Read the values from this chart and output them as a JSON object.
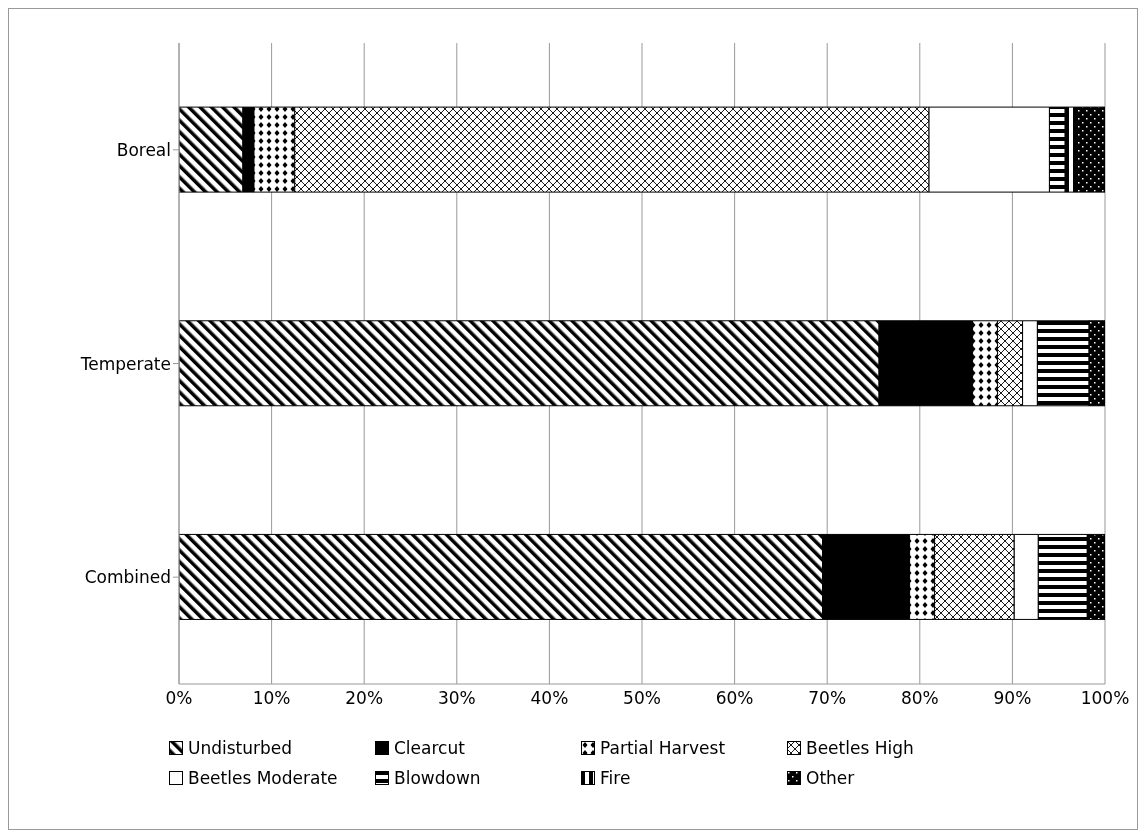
{
  "chart_data": {
    "type": "bar",
    "orientation": "horizontal",
    "stacked": true,
    "categories": [
      "Boreal",
      "Temperate",
      "Combined"
    ],
    "series": [
      {
        "name": "Undisturbed",
        "color": "#000000",
        "values": [
          6.9,
          75.6,
          69.5
        ]
      },
      {
        "name": "Clearcut",
        "color": "#000000",
        "values": [
          1.2,
          10.1,
          9.4
        ]
      },
      {
        "name": "Partial Harvest",
        "color": "#000000",
        "values": [
          4.4,
          2.7,
          2.7
        ]
      },
      {
        "name": "Beetles High",
        "color": "#000000",
        "values": [
          68.5,
          2.7,
          8.6
        ]
      },
      {
        "name": "Beetles Moderate",
        "color": "#ffffff",
        "values": [
          13.0,
          1.6,
          2.6
        ]
      },
      {
        "name": "Blowdown",
        "color": "#000000",
        "values": [
          1.7,
          5.6,
          5.3
        ]
      },
      {
        "name": "Fire",
        "color": "#000000",
        "values": [
          1.2,
          0,
          0
        ]
      },
      {
        "name": "Other",
        "color": "#000000",
        "values": [
          3.1,
          1.7,
          1.9
        ]
      }
    ],
    "xlim": [
      0,
      100
    ],
    "xticks": [
      {
        "value": 0,
        "label": "0%"
      },
      {
        "value": 10,
        "label": "10%"
      },
      {
        "value": 20,
        "label": "20%"
      },
      {
        "value": 30,
        "label": "30%"
      },
      {
        "value": 40,
        "label": "40%"
      },
      {
        "value": 50,
        "label": "50%"
      },
      {
        "value": 60,
        "label": "60%"
      },
      {
        "value": 70,
        "label": "70%"
      },
      {
        "value": 80,
        "label": "80%"
      },
      {
        "value": 90,
        "label": "90%"
      },
      {
        "value": 100,
        "label": "100%"
      }
    ],
    "grid": "x",
    "legend": "bottom"
  }
}
